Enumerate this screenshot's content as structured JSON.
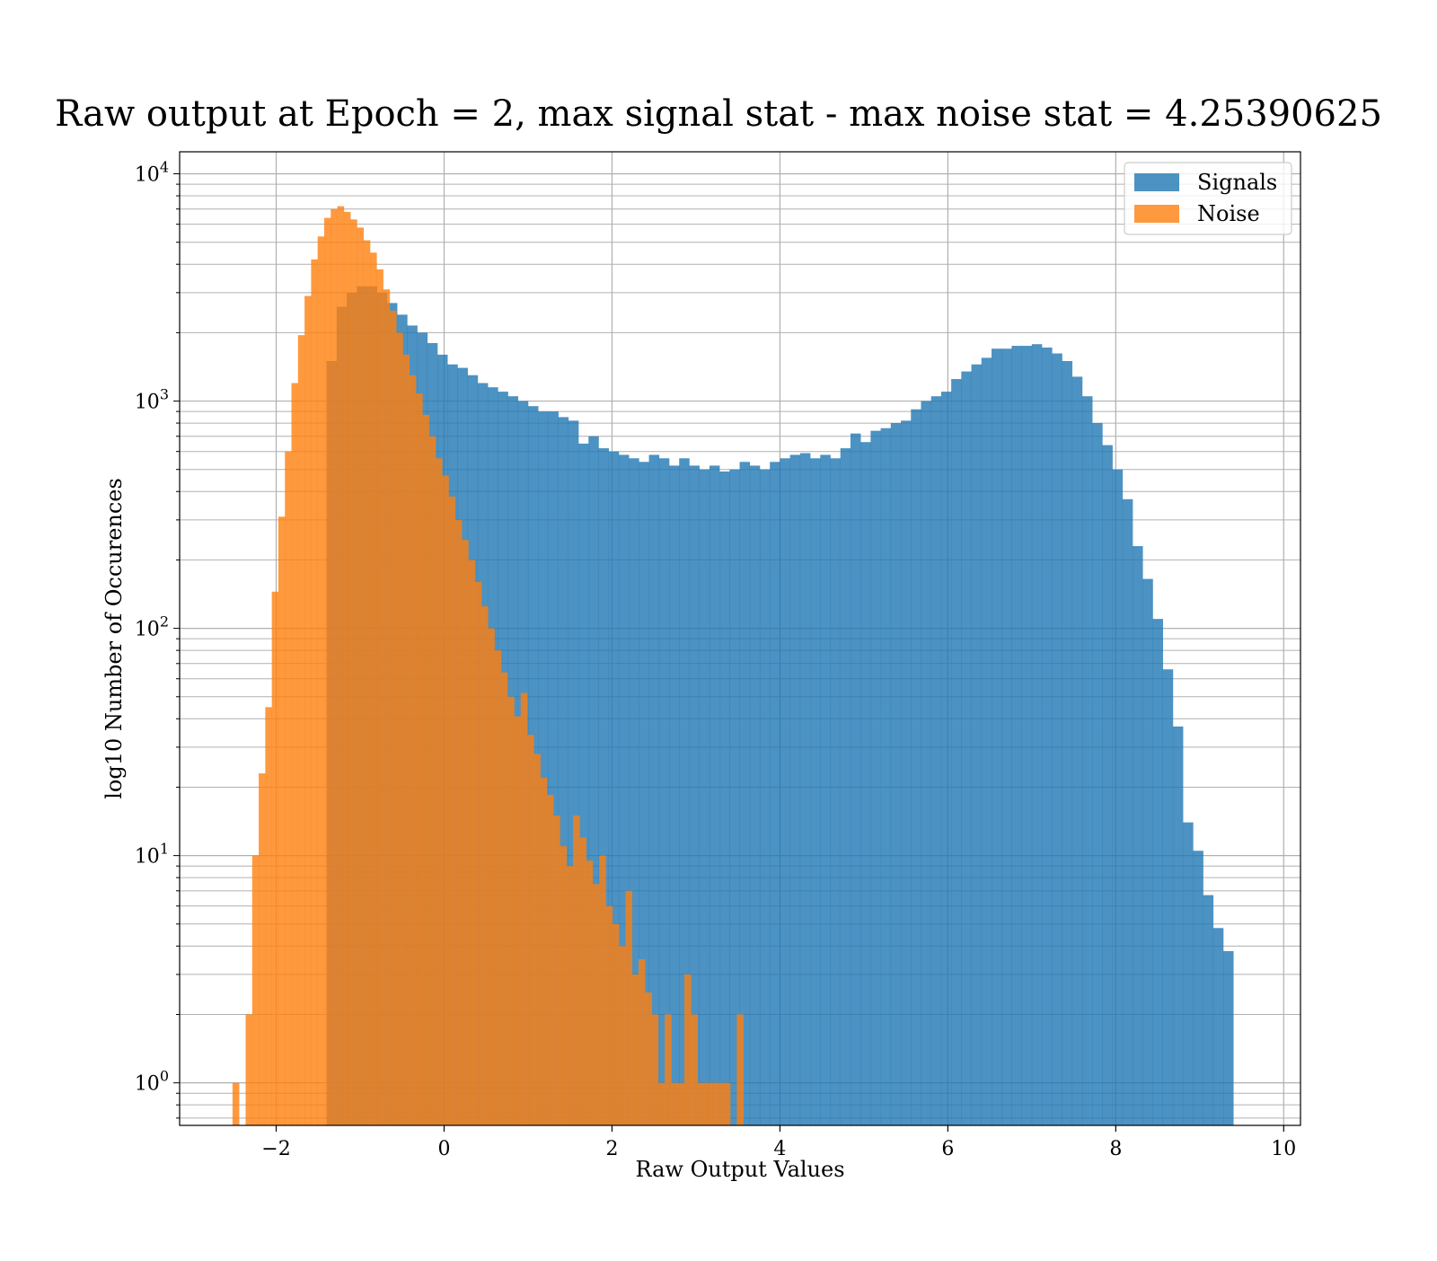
{
  "chart_data": {
    "type": "bar",
    "title": "Raw output at Epoch = 2, max signal stat - max noise stat = 4.25390625",
    "xlabel": "Raw Output Values",
    "ylabel": "log10 Number of Occurences",
    "xlim": [
      -3.15,
      10.2
    ],
    "ylim": [
      0.65,
      12500
    ],
    "yscale": "log",
    "x_ticks": [
      -2,
      0,
      2,
      4,
      6,
      8,
      10
    ],
    "x_tick_labels": [
      "−2",
      "0",
      "2",
      "4",
      "6",
      "8",
      "10"
    ],
    "y_ticks": [
      1,
      10,
      100,
      1000,
      10000
    ],
    "y_tick_labels": [
      {
        "base": "10",
        "exp": "0"
      },
      {
        "base": "10",
        "exp": "1"
      },
      {
        "base": "10",
        "exp": "2"
      },
      {
        "base": "10",
        "exp": "3"
      },
      {
        "base": "10",
        "exp": "4"
      }
    ],
    "grid": true,
    "legend_position": "top-right",
    "series": [
      {
        "name": "Signals",
        "color": "#1f77b4",
        "opacity": 0.8,
        "bin_start": -1.4,
        "bin_width": 0.12,
        "values": [
          1500,
          2600,
          3000,
          3200,
          3200,
          3000,
          2700,
          2400,
          2150,
          2000,
          1800,
          1600,
          1450,
          1400,
          1300,
          1200,
          1150,
          1100,
          1050,
          1000,
          950,
          900,
          900,
          850,
          820,
          650,
          700,
          620,
          600,
          580,
          560,
          540,
          580,
          560,
          520,
          560,
          520,
          500,
          520,
          490,
          500,
          540,
          520,
          500,
          540,
          560,
          580,
          590,
          560,
          580,
          560,
          620,
          720,
          660,
          740,
          760,
          800,
          820,
          920,
          1000,
          1050,
          1100,
          1250,
          1350,
          1450,
          1550,
          1700,
          1700,
          1750,
          1750,
          1780,
          1720,
          1620,
          1500,
          1280,
          1050,
          800,
          640,
          500,
          370,
          230,
          165,
          110,
          66,
          37,
          14,
          10.5,
          6.7,
          4.8,
          3.8
        ]
      },
      {
        "name": "Noise",
        "color": "#ff7f0e",
        "opacity": 0.8,
        "bin_start": -2.52,
        "bin_width": 0.078,
        "values": [
          1,
          0,
          2,
          10,
          23,
          45,
          145,
          310,
          600,
          1200,
          1950,
          2900,
          4200,
          5300,
          6400,
          7000,
          7200,
          6800,
          6300,
          5800,
          5100,
          4500,
          3800,
          3100,
          2500,
          2000,
          1600,
          1300,
          1080,
          870,
          700,
          560,
          470,
          380,
          300,
          245,
          200,
          160,
          125,
          100,
          80,
          64,
          50,
          41,
          52,
          34,
          28,
          22,
          18.5,
          15,
          11,
          9,
          15,
          12,
          9.5,
          7.5,
          10,
          6,
          5,
          4,
          7,
          3,
          3.5,
          2.5,
          2,
          1,
          2,
          1,
          1,
          3,
          2,
          1,
          1,
          1,
          1,
          1,
          0,
          2
        ]
      }
    ]
  }
}
